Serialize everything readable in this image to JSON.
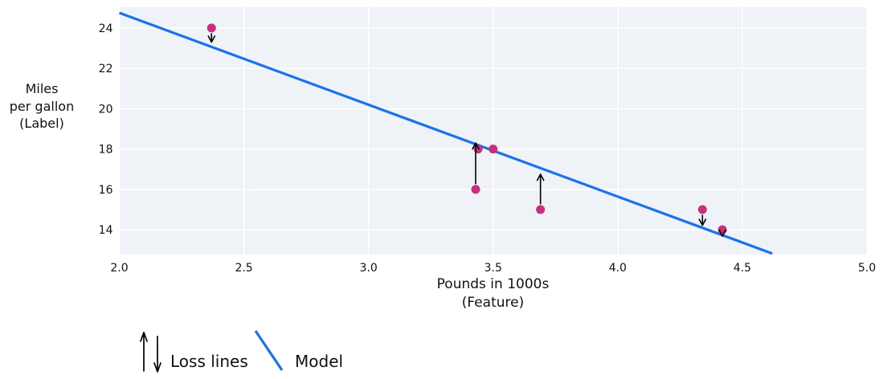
{
  "chart_data": {
    "type": "scatter",
    "title": "",
    "xlabel": "Pounds in 1000s\n(Feature)",
    "ylabel": "Miles\nper gallon\n(Label)",
    "xlim": [
      2.0,
      5.0
    ],
    "ylim": [
      12.77,
      25.03
    ],
    "grid": true,
    "x_ticks": [
      2.0,
      2.5,
      3.0,
      3.5,
      4.0,
      4.5,
      5.0
    ],
    "x_tick_labels": [
      "2.0",
      "2.5",
      "3.0",
      "3.5",
      "4.0",
      "4.5",
      "5.0"
    ],
    "y_ticks": [
      14,
      16,
      18,
      20,
      22,
      24
    ],
    "y_tick_labels": [
      "14",
      "16",
      "18",
      "20",
      "22",
      "24"
    ],
    "points": [
      {
        "x": 3.5,
        "y": 18
      },
      {
        "x": 3.69,
        "y": 15
      },
      {
        "x": 3.44,
        "y": 18
      },
      {
        "x": 3.43,
        "y": 16
      },
      {
        "x": 4.34,
        "y": 15
      },
      {
        "x": 4.42,
        "y": 14
      },
      {
        "x": 2.37,
        "y": 24
      }
    ],
    "model_line": {
      "x1": 2.0,
      "y1": 24.75,
      "x2": 4.62,
      "y2": 12.82
    },
    "loss_arrows": [
      {
        "x": 2.37,
        "from_y": 24,
        "to_y": 23.3
      },
      {
        "x": 3.43,
        "from_y": 16,
        "to_y": 18.3
      },
      {
        "x": 3.69,
        "from_y": 15,
        "to_y": 16.75
      },
      {
        "x": 4.34,
        "from_y": 15,
        "to_y": 14.22
      },
      {
        "x": 4.42,
        "from_y": 14,
        "to_y": 13.68
      }
    ],
    "colors": {
      "model_line": "#1A73E8",
      "point": "#C9307A",
      "plot_bg": "#EFF2F7",
      "grid": "#FFFFFF",
      "arrow": "#000000",
      "text": "#111111"
    }
  },
  "legend": {
    "loss_label": "Loss lines",
    "model_label": "Model"
  }
}
